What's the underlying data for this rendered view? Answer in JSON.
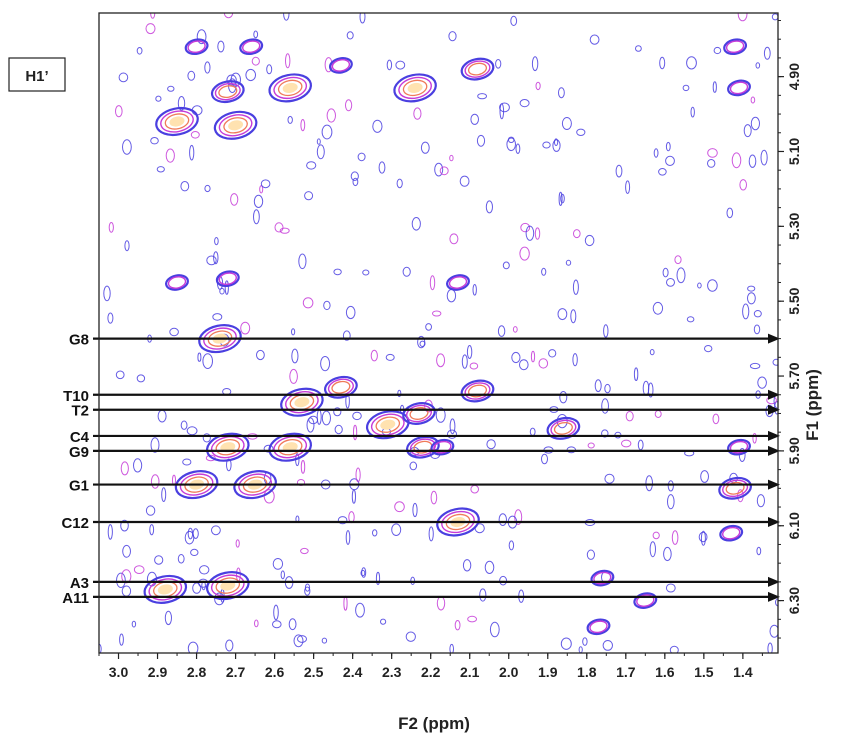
{
  "chart_data": {
    "type": "scatter",
    "subtype": "2D NMR contour plot",
    "title": "",
    "panel_label": "H1’",
    "xlabel": "F2 (ppm)",
    "ylabel": "F1 (ppm)",
    "x_reversed": true,
    "x_ticks": [
      "3.0",
      "2.9",
      "2.8",
      "2.7",
      "2.6",
      "2.5",
      "2.4",
      "2.3",
      "2.2",
      "2.1",
      "2.0",
      "1.9",
      "1.8",
      "1.7",
      "1.6",
      "1.5",
      "1.4"
    ],
    "y_ticks": [
      "4.90",
      "5.10",
      "5.30",
      "5.50",
      "5.70",
      "5.90",
      "6.10",
      "6.30"
    ],
    "xlim": [
      3.05,
      1.31
    ],
    "ylim": [
      4.73,
      6.44
    ],
    "colors": {
      "outer": "#4a3fe0",
      "mid": "#c63bd8",
      "inner": "#f07a5a",
      "core": "#ffe2b0",
      "frame": "#222222",
      "arrow": "#111111"
    },
    "assignments": [
      {
        "label": "G8",
        "f1": 5.6
      },
      {
        "label": "T10",
        "f1": 5.75
      },
      {
        "label": "T2",
        "f1": 5.79
      },
      {
        "label": "C4",
        "f1": 5.86
      },
      {
        "label": "G9",
        "f1": 5.9
      },
      {
        "label": "G1",
        "f1": 5.99
      },
      {
        "label": "C12",
        "f1": 6.09
      },
      {
        "label": "A3",
        "f1": 6.25
      },
      {
        "label": "A11",
        "f1": 6.29
      }
    ],
    "peaks": [
      {
        "f2": 2.85,
        "f1": 5.02,
        "strength": 3
      },
      {
        "f2": 2.72,
        "f1": 4.94,
        "strength": 2
      },
      {
        "f2": 2.7,
        "f1": 5.03,
        "strength": 3
      },
      {
        "f2": 2.56,
        "f1": 4.93,
        "strength": 3
      },
      {
        "f2": 2.24,
        "f1": 4.93,
        "strength": 3
      },
      {
        "f2": 2.08,
        "f1": 4.88,
        "strength": 2
      },
      {
        "f2": 2.43,
        "f1": 4.87,
        "strength": 1
      },
      {
        "f2": 2.8,
        "f1": 4.82,
        "strength": 1
      },
      {
        "f2": 2.66,
        "f1": 4.82,
        "strength": 1
      },
      {
        "f2": 1.42,
        "f1": 4.82,
        "strength": 1
      },
      {
        "f2": 1.41,
        "f1": 4.93,
        "strength": 1
      },
      {
        "f2": 2.85,
        "f1": 5.45,
        "strength": 1
      },
      {
        "f2": 2.72,
        "f1": 5.44,
        "strength": 1
      },
      {
        "f2": 2.13,
        "f1": 5.45,
        "strength": 1
      },
      {
        "f2": 2.74,
        "f1": 5.6,
        "strength": 3
      },
      {
        "f2": 2.43,
        "f1": 5.73,
        "strength": 2
      },
      {
        "f2": 2.53,
        "f1": 5.77,
        "strength": 3
      },
      {
        "f2": 2.08,
        "f1": 5.74,
        "strength": 2
      },
      {
        "f2": 2.31,
        "f1": 5.83,
        "strength": 3
      },
      {
        "f2": 2.23,
        "f1": 5.8,
        "strength": 2
      },
      {
        "f2": 1.86,
        "f1": 5.84,
        "strength": 2
      },
      {
        "f2": 2.72,
        "f1": 5.89,
        "strength": 3
      },
      {
        "f2": 2.56,
        "f1": 5.89,
        "strength": 3
      },
      {
        "f2": 2.22,
        "f1": 5.89,
        "strength": 2
      },
      {
        "f2": 2.17,
        "f1": 5.89,
        "strength": 1
      },
      {
        "f2": 1.41,
        "f1": 5.89,
        "strength": 1
      },
      {
        "f2": 2.8,
        "f1": 5.99,
        "strength": 3
      },
      {
        "f2": 2.65,
        "f1": 5.99,
        "strength": 3
      },
      {
        "f2": 1.42,
        "f1": 6.0,
        "strength": 2
      },
      {
        "f2": 2.13,
        "f1": 6.09,
        "strength": 3
      },
      {
        "f2": 1.43,
        "f1": 6.12,
        "strength": 1
      },
      {
        "f2": 2.88,
        "f1": 6.27,
        "strength": 3
      },
      {
        "f2": 2.72,
        "f1": 6.26,
        "strength": 3
      },
      {
        "f2": 1.76,
        "f1": 6.24,
        "strength": 1
      },
      {
        "f2": 1.77,
        "f1": 6.37,
        "strength": 1
      },
      {
        "f2": 1.65,
        "f1": 6.3,
        "strength": 1
      }
    ]
  }
}
